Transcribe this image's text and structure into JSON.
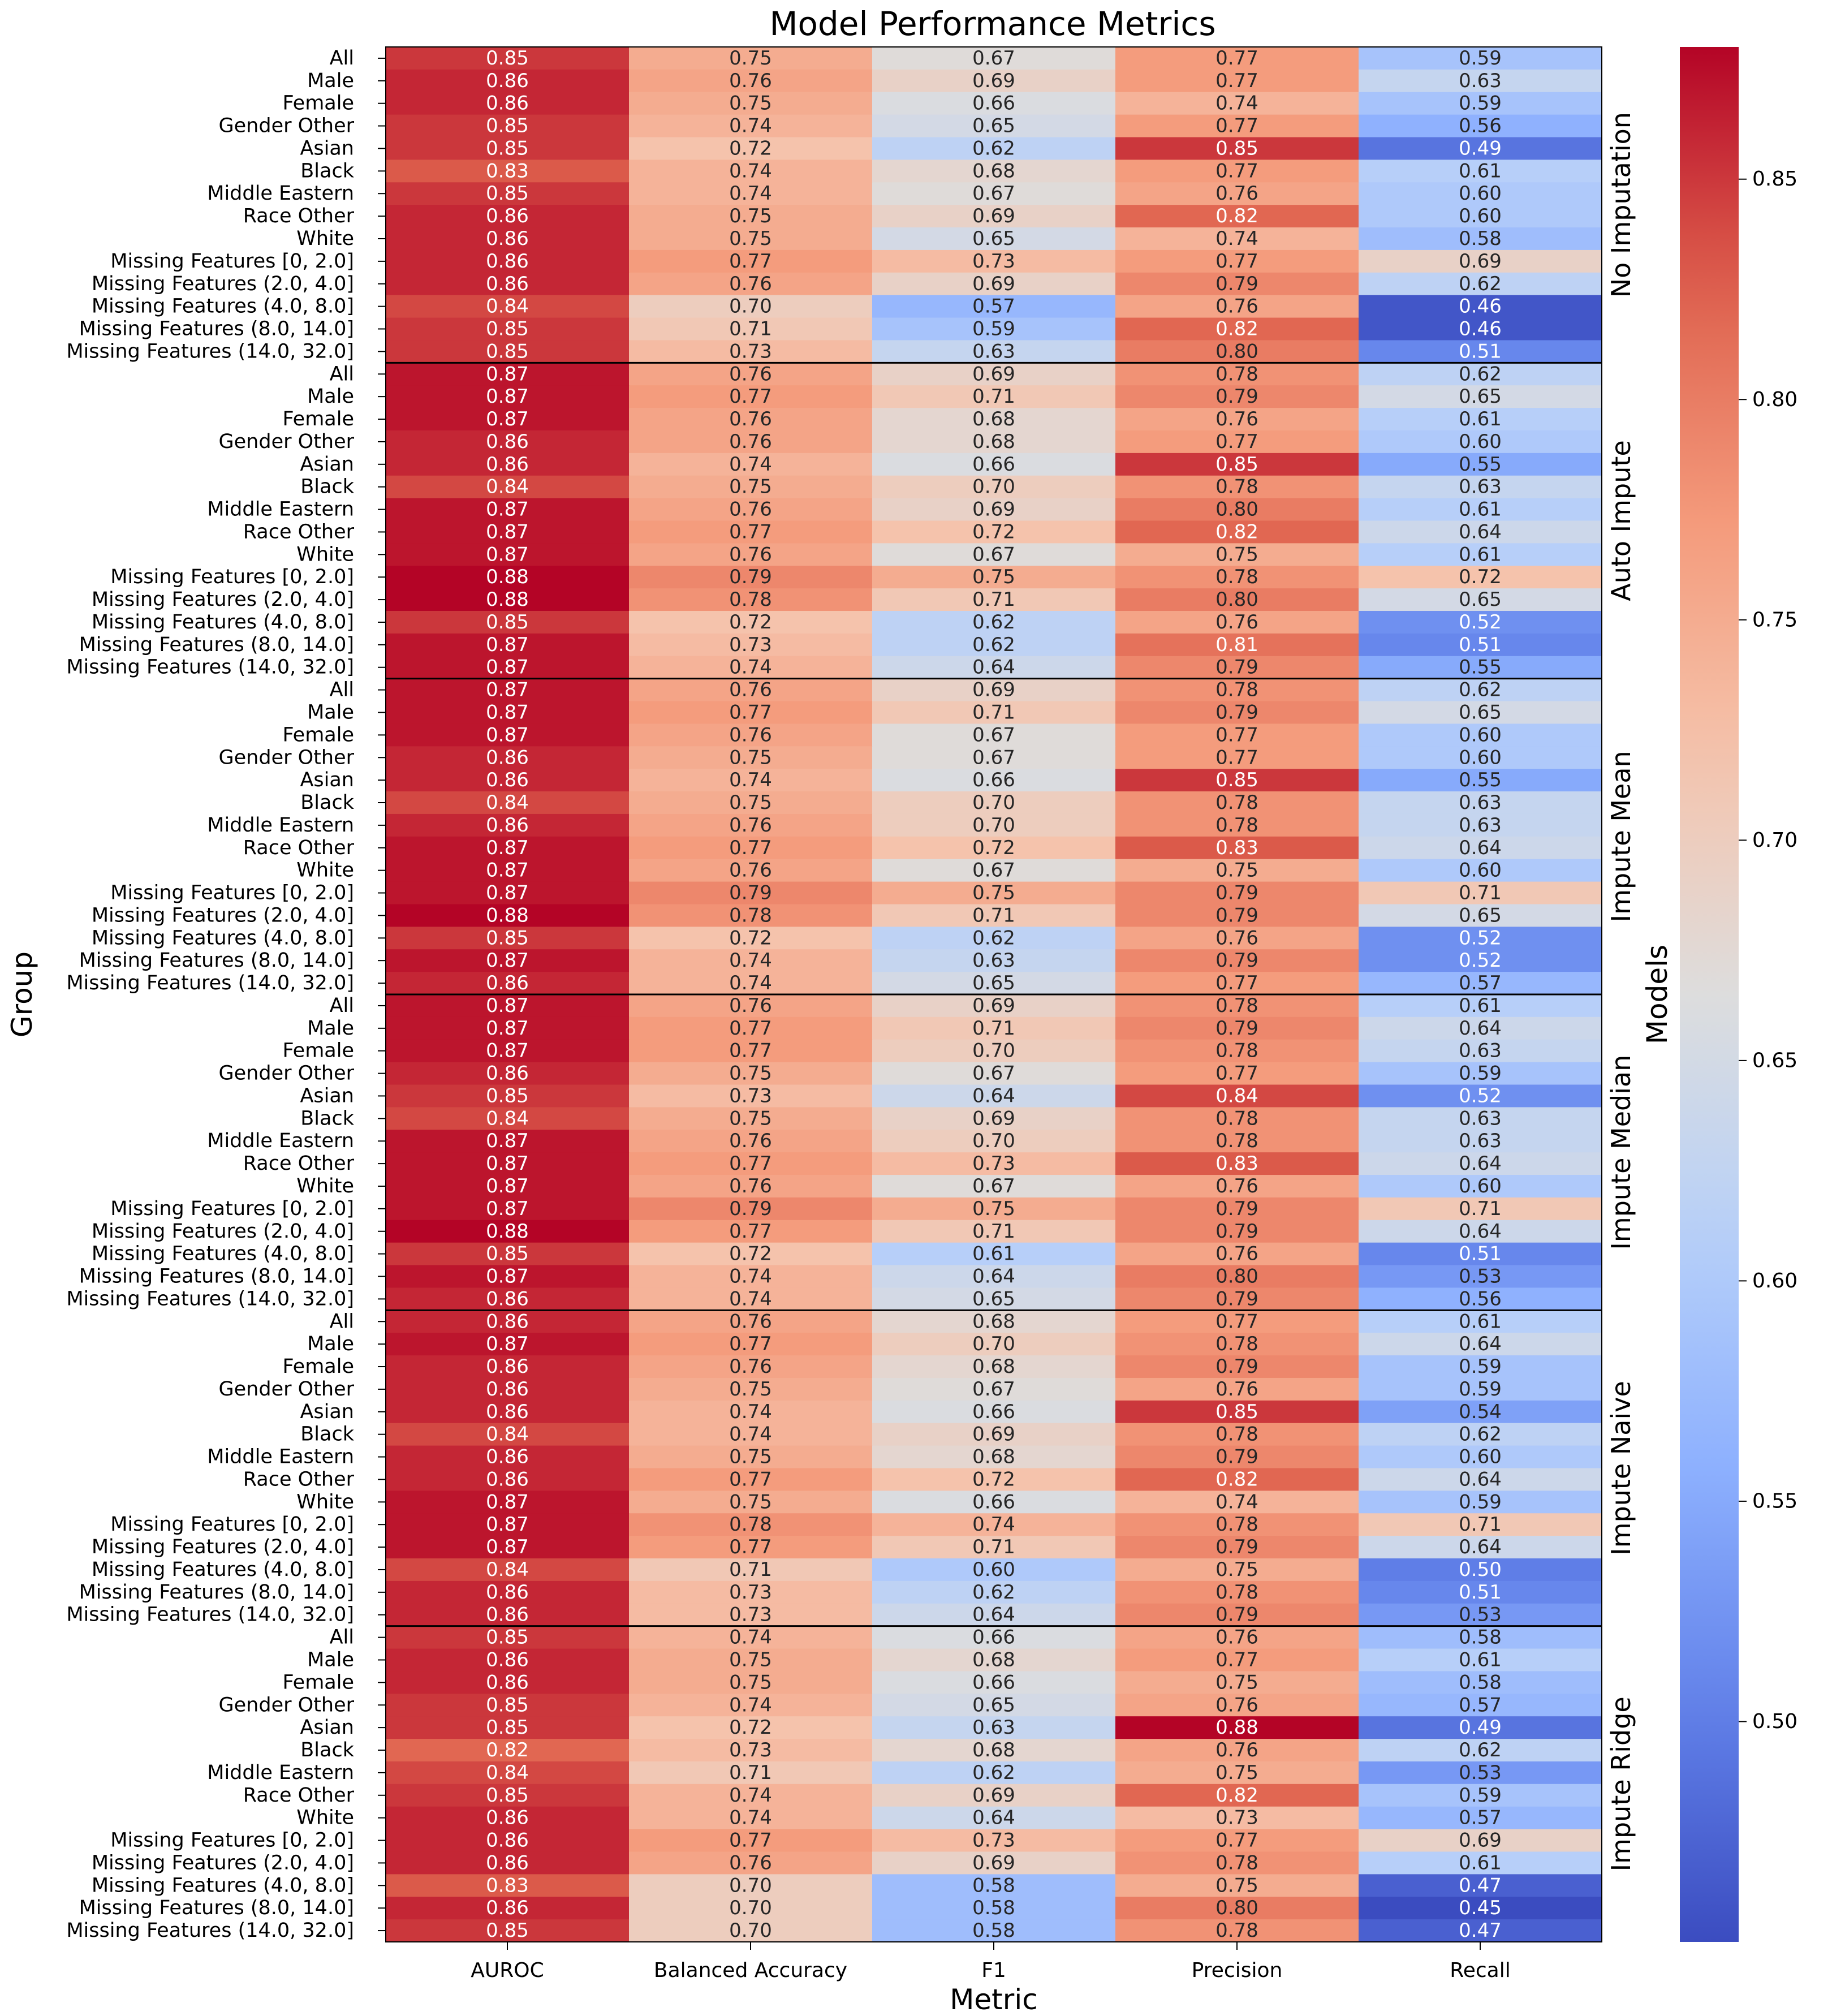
{
  "chart_data": {
    "type": "heatmap",
    "title": "Model Performance Metrics",
    "xlabel": "Metric",
    "ylabel": "Group",
    "right_label": "Models",
    "colormap": "coolwarm",
    "value_range": [
      0.45,
      0.88
    ],
    "colorbar_ticks": [
      "0.85",
      "0.80",
      "0.75",
      "0.70",
      "0.65",
      "0.60",
      "0.55",
      "0.50"
    ],
    "metrics": [
      "AUROC",
      "Balanced Accuracy",
      "F1",
      "Precision",
      "Recall"
    ],
    "groups": [
      "All",
      "Male",
      "Female",
      "Gender Other",
      "Asian",
      "Black",
      "Middle Eastern",
      "Race Other",
      "White",
      "Missing Features [0, 2.0]",
      "Missing Features (2.0, 4.0]",
      "Missing Features (4.0, 8.0]",
      "Missing Features (8.0, 14.0]",
      "Missing Features (14.0, 32.0]"
    ],
    "models": [
      {
        "name": "No Imputation",
        "rows": [
          [
            "0.85",
            "0.75",
            "0.67",
            "0.77",
            "0.59"
          ],
          [
            "0.86",
            "0.76",
            "0.69",
            "0.77",
            "0.63"
          ],
          [
            "0.86",
            "0.75",
            "0.66",
            "0.74",
            "0.59"
          ],
          [
            "0.85",
            "0.74",
            "0.65",
            "0.77",
            "0.56"
          ],
          [
            "0.85",
            "0.72",
            "0.62",
            "0.85",
            "0.49"
          ],
          [
            "0.83",
            "0.74",
            "0.68",
            "0.77",
            "0.61"
          ],
          [
            "0.85",
            "0.74",
            "0.67",
            "0.76",
            "0.60"
          ],
          [
            "0.86",
            "0.75",
            "0.69",
            "0.82",
            "0.60"
          ],
          [
            "0.86",
            "0.75",
            "0.65",
            "0.74",
            "0.58"
          ],
          [
            "0.86",
            "0.77",
            "0.73",
            "0.77",
            "0.69"
          ],
          [
            "0.86",
            "0.76",
            "0.69",
            "0.79",
            "0.62"
          ],
          [
            "0.84",
            "0.70",
            "0.57",
            "0.76",
            "0.46"
          ],
          [
            "0.85",
            "0.71",
            "0.59",
            "0.82",
            "0.46"
          ],
          [
            "0.85",
            "0.73",
            "0.63",
            "0.80",
            "0.51"
          ]
        ]
      },
      {
        "name": "Auto Impute",
        "rows": [
          [
            "0.87",
            "0.76",
            "0.69",
            "0.78",
            "0.62"
          ],
          [
            "0.87",
            "0.77",
            "0.71",
            "0.79",
            "0.65"
          ],
          [
            "0.87",
            "0.76",
            "0.68",
            "0.76",
            "0.61"
          ],
          [
            "0.86",
            "0.76",
            "0.68",
            "0.77",
            "0.60"
          ],
          [
            "0.86",
            "0.74",
            "0.66",
            "0.85",
            "0.55"
          ],
          [
            "0.84",
            "0.75",
            "0.70",
            "0.78",
            "0.63"
          ],
          [
            "0.87",
            "0.76",
            "0.69",
            "0.80",
            "0.61"
          ],
          [
            "0.87",
            "0.77",
            "0.72",
            "0.82",
            "0.64"
          ],
          [
            "0.87",
            "0.76",
            "0.67",
            "0.75",
            "0.61"
          ],
          [
            "0.88",
            "0.79",
            "0.75",
            "0.78",
            "0.72"
          ],
          [
            "0.88",
            "0.78",
            "0.71",
            "0.80",
            "0.65"
          ],
          [
            "0.85",
            "0.72",
            "0.62",
            "0.76",
            "0.52"
          ],
          [
            "0.87",
            "0.73",
            "0.62",
            "0.81",
            "0.51"
          ],
          [
            "0.87",
            "0.74",
            "0.64",
            "0.79",
            "0.55"
          ]
        ]
      },
      {
        "name": "Impute Mean",
        "rows": [
          [
            "0.87",
            "0.76",
            "0.69",
            "0.78",
            "0.62"
          ],
          [
            "0.87",
            "0.77",
            "0.71",
            "0.79",
            "0.65"
          ],
          [
            "0.87",
            "0.76",
            "0.67",
            "0.77",
            "0.60"
          ],
          [
            "0.86",
            "0.75",
            "0.67",
            "0.77",
            "0.60"
          ],
          [
            "0.86",
            "0.74",
            "0.66",
            "0.85",
            "0.55"
          ],
          [
            "0.84",
            "0.75",
            "0.70",
            "0.78",
            "0.63"
          ],
          [
            "0.86",
            "0.76",
            "0.70",
            "0.78",
            "0.63"
          ],
          [
            "0.87",
            "0.77",
            "0.72",
            "0.83",
            "0.64"
          ],
          [
            "0.87",
            "0.76",
            "0.67",
            "0.75",
            "0.60"
          ],
          [
            "0.87",
            "0.79",
            "0.75",
            "0.79",
            "0.71"
          ],
          [
            "0.88",
            "0.78",
            "0.71",
            "0.79",
            "0.65"
          ],
          [
            "0.85",
            "0.72",
            "0.62",
            "0.76",
            "0.52"
          ],
          [
            "0.87",
            "0.74",
            "0.63",
            "0.79",
            "0.52"
          ],
          [
            "0.86",
            "0.74",
            "0.65",
            "0.77",
            "0.57"
          ]
        ]
      },
      {
        "name": "Impute Median",
        "rows": [
          [
            "0.87",
            "0.76",
            "0.69",
            "0.78",
            "0.61"
          ],
          [
            "0.87",
            "0.77",
            "0.71",
            "0.79",
            "0.64"
          ],
          [
            "0.87",
            "0.77",
            "0.70",
            "0.78",
            "0.63"
          ],
          [
            "0.86",
            "0.75",
            "0.67",
            "0.77",
            "0.59"
          ],
          [
            "0.85",
            "0.73",
            "0.64",
            "0.84",
            "0.52"
          ],
          [
            "0.84",
            "0.75",
            "0.69",
            "0.78",
            "0.63"
          ],
          [
            "0.87",
            "0.76",
            "0.70",
            "0.78",
            "0.63"
          ],
          [
            "0.87",
            "0.77",
            "0.73",
            "0.83",
            "0.64"
          ],
          [
            "0.87",
            "0.76",
            "0.67",
            "0.76",
            "0.60"
          ],
          [
            "0.87",
            "0.79",
            "0.75",
            "0.79",
            "0.71"
          ],
          [
            "0.88",
            "0.77",
            "0.71",
            "0.79",
            "0.64"
          ],
          [
            "0.85",
            "0.72",
            "0.61",
            "0.76",
            "0.51"
          ],
          [
            "0.87",
            "0.74",
            "0.64",
            "0.80",
            "0.53"
          ],
          [
            "0.86",
            "0.74",
            "0.65",
            "0.79",
            "0.56"
          ]
        ]
      },
      {
        "name": "Impute Naive",
        "rows": [
          [
            "0.86",
            "0.76",
            "0.68",
            "0.77",
            "0.61"
          ],
          [
            "0.87",
            "0.77",
            "0.70",
            "0.78",
            "0.64"
          ],
          [
            "0.86",
            "0.76",
            "0.68",
            "0.79",
            "0.59"
          ],
          [
            "0.86",
            "0.75",
            "0.67",
            "0.76",
            "0.59"
          ],
          [
            "0.86",
            "0.74",
            "0.66",
            "0.85",
            "0.54"
          ],
          [
            "0.84",
            "0.74",
            "0.69",
            "0.78",
            "0.62"
          ],
          [
            "0.86",
            "0.75",
            "0.68",
            "0.79",
            "0.60"
          ],
          [
            "0.86",
            "0.77",
            "0.72",
            "0.82",
            "0.64"
          ],
          [
            "0.87",
            "0.75",
            "0.66",
            "0.74",
            "0.59"
          ],
          [
            "0.87",
            "0.78",
            "0.74",
            "0.78",
            "0.71"
          ],
          [
            "0.87",
            "0.77",
            "0.71",
            "0.79",
            "0.64"
          ],
          [
            "0.84",
            "0.71",
            "0.60",
            "0.75",
            "0.50"
          ],
          [
            "0.86",
            "0.73",
            "0.62",
            "0.78",
            "0.51"
          ],
          [
            "0.86",
            "0.73",
            "0.64",
            "0.79",
            "0.53"
          ]
        ]
      },
      {
        "name": "Impute Ridge",
        "rows": [
          [
            "0.85",
            "0.74",
            "0.66",
            "0.76",
            "0.58"
          ],
          [
            "0.86",
            "0.75",
            "0.68",
            "0.77",
            "0.61"
          ],
          [
            "0.86",
            "0.75",
            "0.66",
            "0.75",
            "0.58"
          ],
          [
            "0.85",
            "0.74",
            "0.65",
            "0.76",
            "0.57"
          ],
          [
            "0.85",
            "0.72",
            "0.63",
            "0.88",
            "0.49"
          ],
          [
            "0.82",
            "0.73",
            "0.68",
            "0.76",
            "0.62"
          ],
          [
            "0.84",
            "0.71",
            "0.62",
            "0.75",
            "0.53"
          ],
          [
            "0.85",
            "0.74",
            "0.69",
            "0.82",
            "0.59"
          ],
          [
            "0.86",
            "0.74",
            "0.64",
            "0.73",
            "0.57"
          ],
          [
            "0.86",
            "0.77",
            "0.73",
            "0.77",
            "0.69"
          ],
          [
            "0.86",
            "0.76",
            "0.69",
            "0.78",
            "0.61"
          ],
          [
            "0.83",
            "0.70",
            "0.58",
            "0.75",
            "0.47"
          ],
          [
            "0.86",
            "0.70",
            "0.58",
            "0.80",
            "0.45"
          ],
          [
            "0.85",
            "0.70",
            "0.58",
            "0.78",
            "0.47"
          ]
        ]
      }
    ]
  }
}
